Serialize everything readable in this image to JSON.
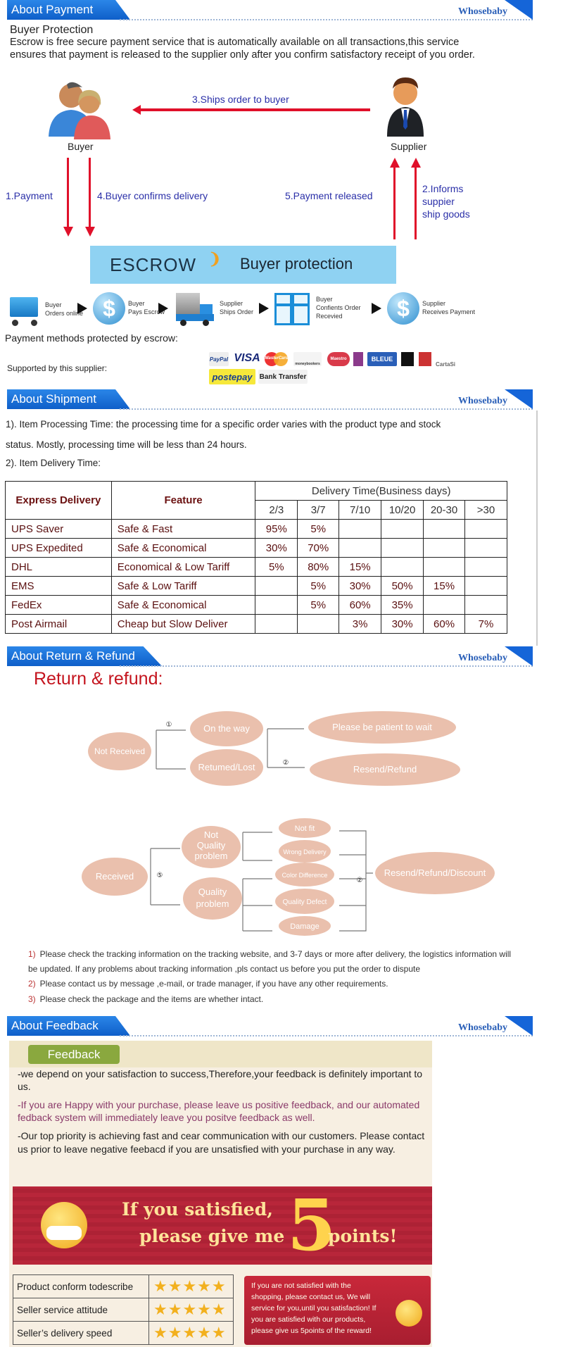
{
  "brand": "Whosebaby",
  "payment": {
    "header": "About Payment",
    "title": "Buyer Protection",
    "description": "Escrow is free secure payment service that is automatically available on all transactions,this service ensures that payment is released to the supplier only after you confirm satisfactory receipt of you order.",
    "buyer_label": "Buyer",
    "supplier_label": "Supplier",
    "flow": {
      "step1": "1.Payment",
      "step2_lines": [
        "2.Informs",
        "suppier",
        "ship goods"
      ],
      "step3": "3.Ships order to buyer",
      "step4": "4.Buyer confirms delivery",
      "step5": "5.Payment released"
    },
    "escrow_logo": "ESCROW",
    "escrow_caption": "Buyer protection",
    "steps": [
      {
        "line1": "Buyer",
        "line2": "Orders online",
        "icon": "cart-icon"
      },
      {
        "line1": "Buyer",
        "line2": "Pays Escrow",
        "icon": "dollar-icon"
      },
      {
        "line1": "Supplier",
        "line2": "Ships Order",
        "icon": "truck-icon"
      },
      {
        "line1": "Buyer",
        "line2": "Confients Order",
        "line3": "Recevied",
        "icon": "gift-icon"
      },
      {
        "line1": "Supplier",
        "line2": "Receives Payment",
        "icon": "dollar-icon"
      }
    ],
    "methods_label": "Payment methods protected by escrow:",
    "supported_label": "Supported by this supplier:",
    "methods": [
      "PayPal",
      "VISA",
      "MasterCard",
      "moneybookers",
      "Maestro",
      "BLEUE",
      "CartaSi",
      "postepay",
      "Bank Transfer"
    ]
  },
  "shipment": {
    "header": "About Shipment",
    "line1": "1). Item Processing Time: the processing time for a specific order varies with the product type and stock",
    "line2": "status. Mostly, processing time will be less than 24 hours.",
    "line3": "2). Item Delivery Time:",
    "table": {
      "col_carrier": "Express Delivery",
      "col_feature": "Feature",
      "col_group": "Delivery Time(Business days)",
      "periods": [
        "2/3",
        "3/7",
        "7/10",
        "10/20",
        "20-30",
        ">30"
      ],
      "rows": [
        {
          "carrier": "UPS Saver",
          "feature": "Safe & Fast",
          "values": [
            "95%",
            "5%",
            "",
            "",
            "",
            ""
          ]
        },
        {
          "carrier": "UPS Expedited",
          "feature": "Safe & Economical",
          "values": [
            "30%",
            "70%",
            "",
            "",
            "",
            ""
          ]
        },
        {
          "carrier": "DHL",
          "feature": "Economical & Low Tariff",
          "values": [
            "5%",
            "80%",
            "15%",
            "",
            "",
            ""
          ]
        },
        {
          "carrier": "EMS",
          "feature": "Safe & Low Tariff",
          "values": [
            "",
            "5%",
            "30%",
            "50%",
            "15%",
            ""
          ]
        },
        {
          "carrier": "FedEx",
          "feature": "Safe & Economical",
          "values": [
            "",
            "5%",
            "60%",
            "35%",
            "",
            ""
          ]
        },
        {
          "carrier": "Post Airmail",
          "feature": "Cheap but Slow Deliver",
          "values": [
            "",
            "",
            "3%",
            "30%",
            "60%",
            "7%"
          ]
        }
      ]
    }
  },
  "refund": {
    "header": "About Return & Refund",
    "title": "Return & refund:",
    "diagram": {
      "not_received": "Not Received",
      "on_the_way": "On the way",
      "returned_lost": "Retumed/Lost",
      "be_patient": "Please be patient to wait",
      "resend_refund": "Resend/Refund",
      "received": "Received",
      "not_quality": [
        "Not",
        "Quality",
        "problem"
      ],
      "quality": [
        "Quality",
        "problem"
      ],
      "not_fit": "Not fit",
      "wrong_delivery": "Wrong Delivery",
      "color_difference": "Color Difference",
      "quality_defect": "Quality Defect",
      "damage": "Damage",
      "resend_refund_discount": "Resend/Refund/Discount",
      "markers": [
        "①",
        "②",
        "⑤",
        "②"
      ]
    },
    "notes": [
      {
        "num": "1)",
        "text": "Please check the tracking information on the tracking website, and 3-7 days or more after delivery, the logistics information will"
      },
      {
        "num": "",
        "text": "be updated. If any problems about tracking information ,pls contact us before you put the order to dispute"
      },
      {
        "num": "2)",
        "text": "Please contact us by message ,e-mail, or trade manager, if you have any other requirements."
      },
      {
        "num": "3)",
        "text": "Please check the package and the items are whether intact."
      }
    ]
  },
  "feedback": {
    "header": "About Feedback",
    "tab": "Feedback",
    "p1": "-we depend on your satisfaction to success,Therefore,your feedback is definitely important to us.",
    "p2": "-If you are Happy with your purchase, please leave us positive feedback, and our automated fedback system will immediately leave you positve feedback as well.",
    "p3": "-Our top priority is achieving fast and cear communication with our customers. Please contact us prior to leave negative feebacd if you are unsatisfied with your purchase in any way.",
    "banner_line1": "If you satisfied,",
    "banner_line2": "please give me",
    "banner_num": "5",
    "banner_line3": "points!",
    "ratings": [
      {
        "label": "Product conform todescribe",
        "stars": 5
      },
      {
        "label": "Seller service attitude",
        "stars": 5
      },
      {
        "label": "Seller’s delivery speed",
        "stars": 5
      }
    ],
    "notice": "If you are not satisfied with the shopping, please contact us, We will service for you,until you satisfaction! If you are satisfied with our products, please give us 5points of the reward!"
  },
  "colors": {
    "header_blue": "#1565d8",
    "arrow_red": "#e0102a",
    "escrow_blue": "#8fd2f2",
    "bubble": "#eac0ad",
    "banner_red": "#b8263a"
  }
}
